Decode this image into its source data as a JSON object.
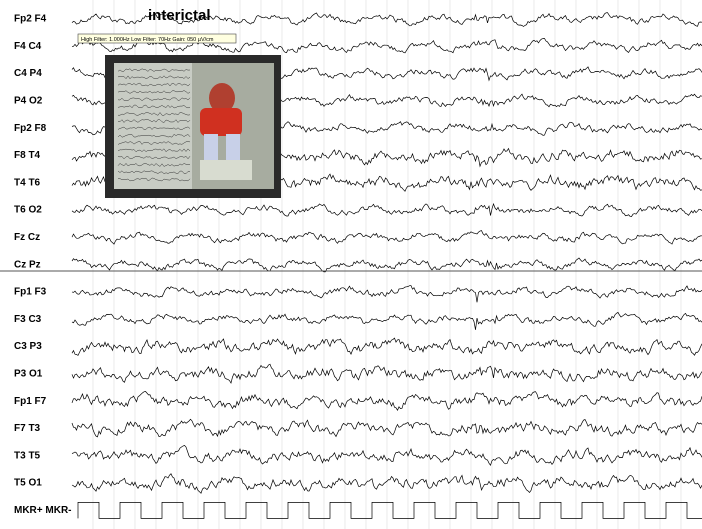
{
  "title": "interictal",
  "filter_info": "High Filter: 1.000Hz   Low Filter: 70Hz   Gain: 050 µV/cm",
  "channels": [
    "Fp2  F4",
    "F4  C4",
    "C4  P4",
    "P4  O2",
    "Fp2  F8",
    "F8  T4",
    "T4  T6",
    "T6  O2",
    "Fz  Cz",
    "Cz  Pz",
    "Fp1  F3",
    "F3  C3",
    "C3  P3",
    "P3  O1",
    "Fp1  F7",
    "F7  T3",
    "T3  T5",
    "T5  O1",
    "MKR+  MKR-"
  ]
}
